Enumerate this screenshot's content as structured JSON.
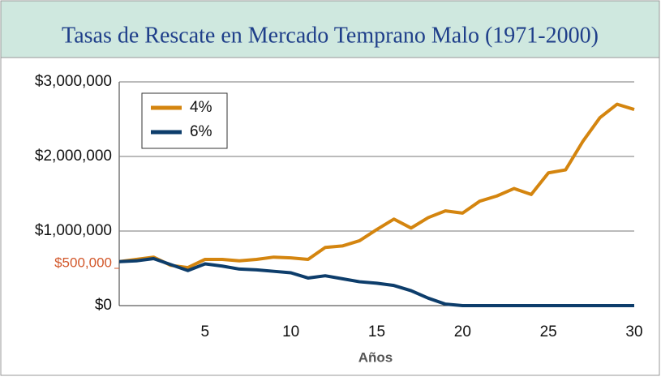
{
  "chart_data": {
    "type": "line",
    "title": "Tasas de Rescate en Mercado Temprano Malo (1971-2000)",
    "x_label": "Años",
    "x": [
      0,
      1,
      2,
      3,
      4,
      5,
      6,
      7,
      8,
      9,
      10,
      11,
      12,
      13,
      14,
      15,
      16,
      17,
      18,
      19,
      20,
      21,
      22,
      23,
      24,
      25,
      26,
      27,
      28,
      29,
      30
    ],
    "series": [
      {
        "name": "4%",
        "color": "#d4850f",
        "values": [
          590000,
          620000,
          650000,
          540000,
          510000,
          620000,
          620000,
          600000,
          620000,
          650000,
          640000,
          620000,
          780000,
          800000,
          870000,
          1020000,
          1160000,
          1040000,
          1180000,
          1270000,
          1240000,
          1400000,
          1470000,
          1570000,
          1490000,
          1780000,
          1820000,
          2200000,
          2520000,
          2700000,
          2630000
        ]
      },
      {
        "name": "6%",
        "color": "#0d3d6b",
        "values": [
          590000,
          600000,
          630000,
          550000,
          470000,
          560000,
          530000,
          490000,
          480000,
          460000,
          440000,
          370000,
          400000,
          360000,
          320000,
          300000,
          270000,
          200000,
          100000,
          20000,
          0,
          0,
          0,
          0,
          0,
          0,
          0,
          0,
          0,
          0,
          0
        ]
      }
    ],
    "xlim": [
      0,
      30
    ],
    "xticks": [
      5,
      10,
      15,
      20,
      25,
      30
    ],
    "ylim": [
      0,
      3000000
    ],
    "yticks": [
      {
        "value": 0,
        "label": "$0"
      },
      {
        "value": 1000000,
        "label": "$1,000,000"
      },
      {
        "value": 2000000,
        "label": "$2,000,000"
      },
      {
        "value": 3000000,
        "label": "$3,000,000"
      }
    ],
    "highlight_tick": {
      "value": 500000,
      "label": "$500,000",
      "color": "#d2572a"
    },
    "grid": true,
    "legend": "upper left"
  }
}
